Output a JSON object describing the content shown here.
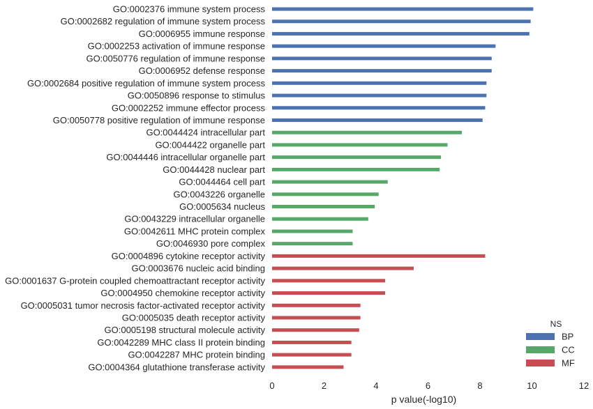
{
  "chart_data": {
    "type": "bar",
    "orientation": "horizontal",
    "xlabel": "p value(-log10)",
    "ylabel": "",
    "xlim": [
      0,
      12
    ],
    "xticks": [
      0,
      2,
      4,
      6,
      8,
      10,
      12
    ],
    "grid": false,
    "legend": {
      "title": "NS",
      "placement": "bottom-right",
      "entries": [
        {
          "name": "BP",
          "color": "#4c72b0"
        },
        {
          "name": "CC",
          "color": "#55a868"
        },
        {
          "name": "MF",
          "color": "#c44e52"
        }
      ]
    },
    "categories": [
      "GO:0002376 immune system process",
      "GO:0002682 regulation of immune system process",
      "GO:0006955 immune response",
      "GO:0002253 activation of immune response",
      "GO:0050776 regulation of immune response",
      "GO:0006952 defense response",
      "GO:0002684 positive regulation of immune system process",
      "GO:0050896 response to stimulus",
      "GO:0002252 immune effector process",
      "GO:0050778 positive regulation of immune response",
      "GO:0044424 intracellular part",
      "GO:0044422 organelle part",
      "GO:0044446 intracellular organelle part",
      "GO:0044428 nuclear part",
      "GO:0044464 cell part",
      "GO:0043226 organelle",
      "GO:0005634 nucleus",
      "GO:0043229 intracellular organelle",
      "GO:0042611 MHC protein complex",
      "GO:0046930 pore complex",
      "GO:0004896 cytokine receptor activity",
      "GO:0003676 nucleic acid binding",
      "GO:0001637 G-protein coupled chemoattractant receptor activity",
      "GO:0004950 chemokine receptor activity",
      "GO:0005031 tumor necrosis factor-activated receptor activity",
      "GO:0005035 death receptor activity",
      "GO:0005198 structural molecule activity",
      "GO:0042289 MHC class II protein binding",
      "GO:0042287 MHC protein binding",
      "GO:0004364 glutathione transferase activity"
    ],
    "groups": [
      "BP",
      "BP",
      "BP",
      "BP",
      "BP",
      "BP",
      "BP",
      "BP",
      "BP",
      "BP",
      "CC",
      "CC",
      "CC",
      "CC",
      "CC",
      "CC",
      "CC",
      "CC",
      "CC",
      "CC",
      "MF",
      "MF",
      "MF",
      "MF",
      "MF",
      "MF",
      "MF",
      "MF",
      "MF",
      "MF"
    ],
    "values": [
      10.05,
      9.95,
      9.9,
      8.6,
      8.45,
      8.45,
      8.25,
      8.25,
      8.2,
      8.1,
      7.3,
      6.75,
      6.5,
      6.45,
      4.45,
      4.1,
      3.95,
      3.7,
      3.1,
      3.1,
      8.2,
      5.45,
      4.35,
      4.35,
      3.4,
      3.4,
      3.35,
      3.05,
      3.05,
      2.75
    ]
  }
}
